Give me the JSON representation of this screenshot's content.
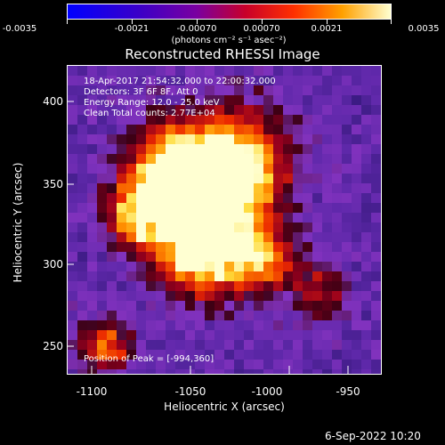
{
  "colorbar": {
    "ticks": [
      "-0.0035",
      "-0.0021",
      "-0.00070",
      "0.00070",
      "0.0021",
      "0.0035"
    ],
    "units": "(photons cm⁻² s⁻¹ asec⁻²)"
  },
  "title": "Reconstructed RHESSI Image",
  "info": {
    "time": "18-Apr-2017 21:54:32.000 to 22:00:32.000",
    "detectors": "Detectors: 3F 6F 8F, Att 0",
    "energy": "Energy Range: 12.0 - 25.0 keV",
    "clean": "Clean     Total counts: 2.77E+04",
    "peak": "Position of Peak = [-994,360]"
  },
  "axes": {
    "xlabel": "Heliocentric X (arcsec)",
    "ylabel": "Heliocentric Y (arcsec)",
    "xticks": [
      "-1100",
      "-1050",
      "-1000",
      "-950"
    ],
    "yticks": [
      "400",
      "350",
      "300",
      "250"
    ]
  },
  "timestamp": "6-Sep-2022 10:20",
  "colors": {
    "background": "#000000",
    "foreground": "#ffffff"
  }
}
